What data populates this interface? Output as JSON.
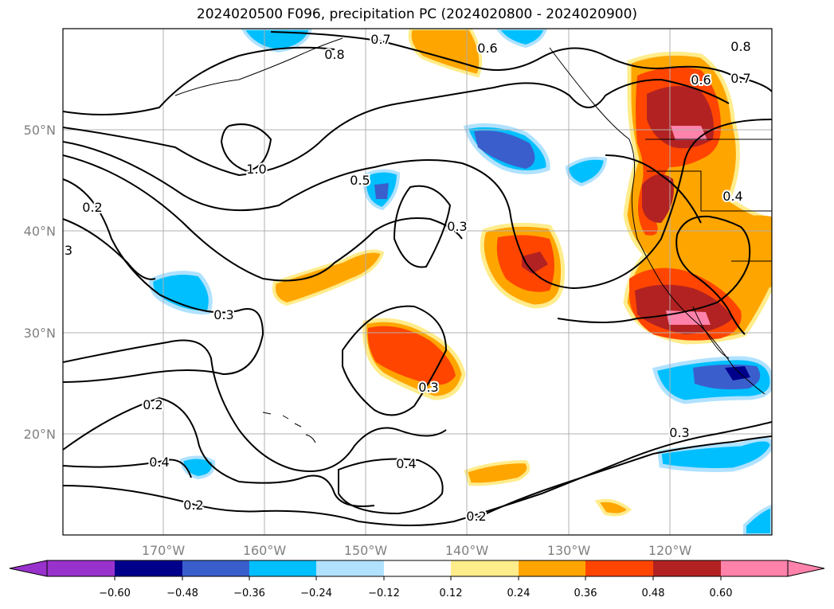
{
  "title": "2024020500 F096, precipitation PC (2024020800 - 2024020900)",
  "lat_labels": [
    "50°N",
    "40°N",
    "30°N",
    "20°N"
  ],
  "lon_labels": [
    "170°W",
    "160°W",
    "150°W",
    "140°W",
    "130°W",
    "120°W"
  ],
  "colorbar": {
    "ticks": [
      "−0.60",
      "−0.48",
      "−0.36",
      "−0.24",
      "−0.12",
      "0.12",
      "0.24",
      "0.36",
      "0.48",
      "0.60"
    ],
    "colors": [
      "#9932cc",
      "#00008b",
      "#3a5fcd",
      "#00bfff",
      "#b0e2ff",
      "#ffffff",
      "#ffec8b",
      "#ffa500",
      "#ff4500",
      "#b22222",
      "#ff82ab"
    ]
  },
  "contour_labels": [
    "0.7",
    "0.6",
    "0.8",
    "0.6",
    "0.7",
    "0.8",
    "1.0",
    "0.5",
    "0.2",
    "3",
    "0.3",
    "0.4",
    "0.3",
    "0.3",
    "0.2",
    "0.4",
    "0.4",
    "0.3",
    "0.2",
    "0.2"
  ]
}
